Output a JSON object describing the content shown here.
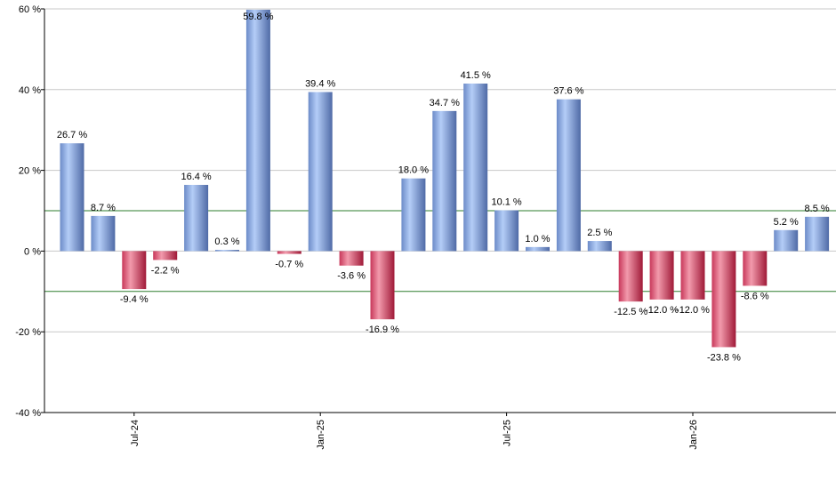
{
  "chart_data": {
    "type": "bar",
    "title": "",
    "xlabel": "",
    "ylabel": "",
    "ylim": [
      -40,
      60
    ],
    "y_ticks": [
      60,
      40,
      20,
      0,
      -20,
      -40
    ],
    "y_tick_labels": [
      "60 %",
      "40 %",
      "20 %",
      "0 %",
      "-20 %",
      "-40 %"
    ],
    "reference_lines": [
      10,
      -10
    ],
    "grid": true,
    "legend": "none",
    "x_tick_labels": [
      {
        "label": "Jul-24",
        "index": 2
      },
      {
        "label": "Jan-25",
        "index": 8
      },
      {
        "label": "Jul-25",
        "index": 14
      },
      {
        "label": "Jan-26",
        "index": 20
      }
    ],
    "values": [
      26.7,
      8.7,
      -9.4,
      -2.2,
      16.4,
      0.3,
      59.8,
      -0.7,
      39.4,
      -3.6,
      -16.9,
      18.0,
      34.7,
      41.5,
      10.1,
      1.0,
      37.6,
      2.5,
      -12.5,
      -12.0,
      -12.0,
      -23.8,
      -8.6,
      5.2,
      8.5
    ],
    "value_labels": [
      "26.7 %",
      "8.7 %",
      "-9.4 %",
      "-2.2 %",
      "16.4 %",
      "0.3 %",
      "59.8 %",
      "-0.7 %",
      "39.4 %",
      "-3.6 %",
      "-16.9 %",
      "18.0 %",
      "34.7 %",
      "41.5 %",
      "10.1 %",
      "1.0 %",
      "37.6 %",
      "2.5 %",
      "-12.5 %",
      "-12.0 %",
      "-12.0 %",
      "-23.8 %",
      "-8.6 %",
      "5.2 %",
      "8.5 %"
    ],
    "colors": {
      "positive_light": "#a9c4f5",
      "positive_dark": "#5a78b4",
      "negative_light": "#f08a9e",
      "negative_dark": "#b02040",
      "reference_line": "#2e7d2e",
      "grid": "#c8c8c8",
      "axis": "#000000"
    }
  }
}
